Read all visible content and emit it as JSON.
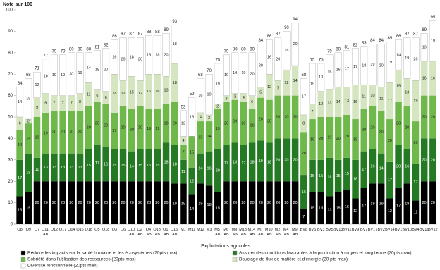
{
  "chart_data": {
    "type": "stacked-bar",
    "title": "Note sur 100",
    "x_label": "Exploitations agricoles",
    "categories": [
      "O8",
      "O9",
      "O7",
      "O11 AB",
      "O12",
      "O17",
      "O14",
      "O16",
      "O18",
      "O5",
      "O18",
      "O3",
      "O6",
      "O10 AB",
      "O2 AB",
      "O4 AB",
      "O13 AB",
      "O1 AB",
      "O15 AB",
      "M1",
      "M11",
      "M12",
      "M3",
      "M5 AB",
      "M6 AB",
      "M8 AB",
      "M13 AB",
      "M14 AB",
      "M7 AB",
      "M10 AB",
      "M2 AB",
      "M4 AB",
      "M9 AB",
      "BV8",
      "BV6",
      "BV3",
      "BV5",
      "BV13",
      "BV11",
      "BV9",
      "BV7",
      "BV17",
      "BV2",
      "BV14",
      "BV1",
      "BV10",
      "BV4",
      "BV16",
      "BV12"
    ],
    "series": [
      {
        "name": "Réduire les impacts sur la santé humaine et les écosystèmes (20pts max)",
        "color": "#000000",
        "values": [
          13,
          15,
          20,
          20,
          20,
          20,
          20,
          20,
          20,
          20,
          20,
          20,
          20,
          20,
          20,
          20,
          20,
          20,
          19,
          19,
          14,
          19,
          18,
          15,
          20,
          20,
          20,
          20,
          20,
          20,
          20,
          20,
          20,
          7,
          15,
          15,
          13,
          15,
          16,
          12,
          17,
          19,
          19,
          12,
          17,
          19,
          11,
          20,
          20
        ]
      },
      {
        "name": "Assurer des conditions favorables à la production à moyen et long terme (20pts max)",
        "color": "#237a23",
        "values": [
          17,
          18,
          11,
          13,
          13,
          13,
          13,
          13,
          15,
          17,
          16,
          15,
          15,
          14,
          15,
          15,
          15,
          18,
          18,
          11,
          12,
          14,
          16,
          20,
          17,
          18,
          17,
          18,
          19,
          18,
          20,
          20,
          20,
          16,
          15,
          15,
          18,
          15,
          15,
          18,
          17,
          16,
          14,
          17,
          20,
          16,
          17,
          20,
          20
        ]
      },
      {
        "name": "Sobriété dans l'utilisation des ressources (20pts max)",
        "color": "#6fb84a",
        "values": [
          14,
          14,
          19,
          19,
          20,
          20,
          20,
          20,
          20,
          20,
          20,
          17,
          20,
          20,
          20,
          19,
          19,
          18,
          20,
          7,
          15,
          15,
          14,
          19,
          20,
          20,
          20,
          16,
          20,
          20,
          20,
          20,
          20,
          20,
          19,
          20,
          19,
          20,
          20,
          19,
          20,
          20,
          20,
          20,
          20,
          20,
          20,
          20,
          20
        ]
      },
      {
        "name": "Bouclage de flux de matière et d'énergie (20 pts max)",
        "color": "#d5e5bf",
        "values": [
          6,
          2,
          9,
          9,
          7,
          7,
          7,
          8,
          11,
          6,
          6,
          18,
          12,
          15,
          12,
          16,
          16,
          13,
          18,
          4,
          0,
          4,
          3,
          2,
          3,
          3,
          4,
          6,
          5,
          12,
          7,
          12,
          14,
          8,
          7,
          12,
          13,
          14,
          13,
          16,
          11,
          10,
          11,
          17,
          15,
          13,
          19,
          16,
          16
        ]
      },
      {
        "name": "Diversité fonctionnelle (20pts max)",
        "color": "#ffffff",
        "values": [
          14,
          19,
          12,
          16,
          19,
          19,
          20,
          19,
          14,
          18,
          20,
          16,
          20,
          18,
          20,
          18,
          18,
          20,
          18,
          12,
          18,
          16,
          19,
          19,
          19,
          19,
          19,
          20,
          20,
          16,
          20,
          18,
          20,
          17,
          19,
          13,
          16,
          16,
          17,
          17,
          18,
          19,
          20,
          19,
          14,
          19,
          20,
          13,
          19
        ]
      }
    ],
    "totals": [
      64,
      68,
      71,
      77,
      79,
      79,
      80,
      80,
      80,
      81,
      82,
      86,
      87,
      87,
      87,
      88,
      88,
      89,
      93,
      53,
      59,
      68,
      70,
      75,
      79,
      80,
      80,
      80,
      84,
      86,
      87,
      90,
      94,
      68,
      75,
      75,
      79,
      80,
      81,
      82,
      83,
      84,
      84,
      85,
      86,
      87,
      87,
      89,
      95
    ],
    "ylim": [
      0,
      100
    ],
    "yticks": [
      0,
      10,
      20,
      30,
      40,
      50,
      60,
      70,
      80,
      90,
      100
    ],
    "grid": false
  }
}
